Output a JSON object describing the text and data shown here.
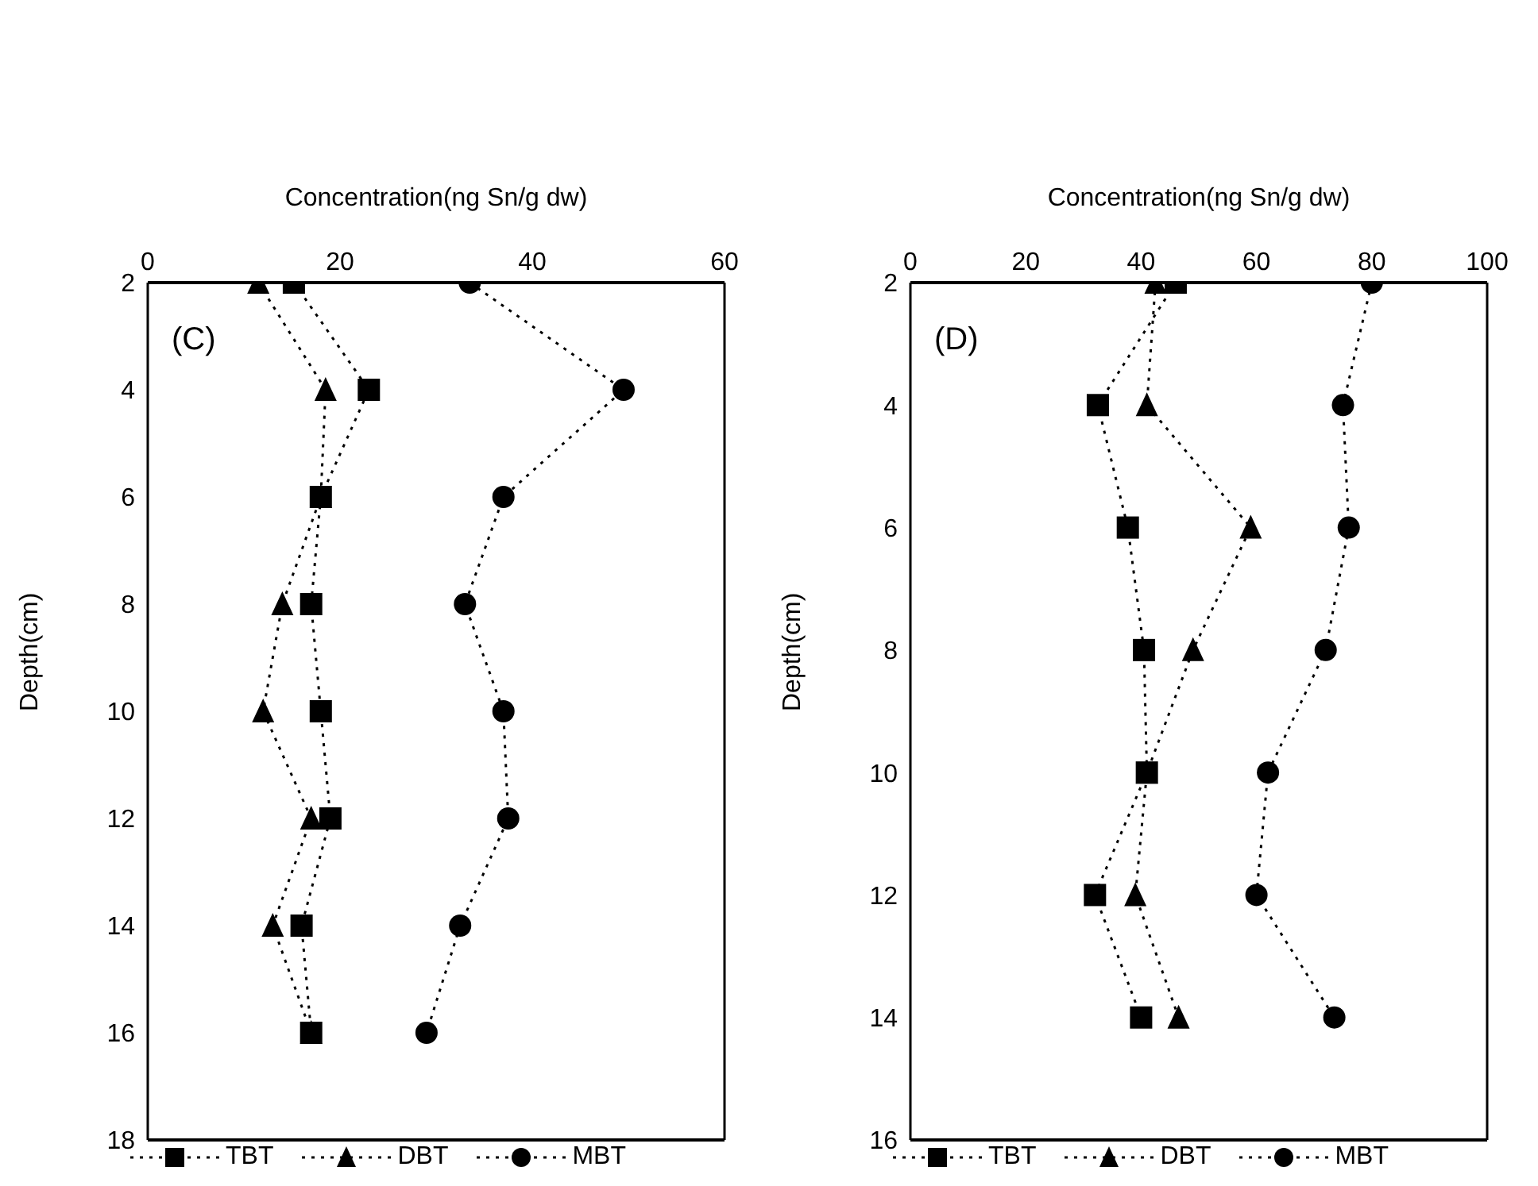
{
  "chart_data": [
    {
      "type": "line",
      "orientation": "horizontal",
      "xlabel": "Concentration(ng Sn/g dw)",
      "ylabel": "Depth(cm)",
      "annotations": [
        "(C)"
      ],
      "x": [
        2,
        4,
        6,
        8,
        10,
        12,
        14,
        16
      ],
      "xlim": [
        0,
        60
      ],
      "xticks": [
        0,
        20,
        40,
        60
      ],
      "ylim": [
        18,
        2
      ],
      "yticks": [
        2,
        4,
        6,
        8,
        10,
        12,
        14,
        16,
        18
      ],
      "line_style": "dotted",
      "legend": "bottom",
      "series": [
        {
          "name": "TBT",
          "color": "#000000",
          "marker": "square",
          "values": [
            15.2,
            23,
            18,
            17,
            18,
            19,
            16,
            17
          ]
        },
        {
          "name": "DBT",
          "color": "#000000",
          "marker": "triangle",
          "values": [
            11.5,
            18.5,
            18,
            14,
            12,
            17,
            13,
            17
          ]
        },
        {
          "name": "MBT",
          "color": "#000000",
          "marker": "circle",
          "values": [
            33.5,
            49.5,
            37,
            33,
            37,
            37.5,
            32.5,
            29
          ]
        }
      ]
    },
    {
      "type": "line",
      "orientation": "horizontal",
      "xlabel": "Concentration(ng Sn/g dw)",
      "ylabel": "Depth(cm)",
      "annotations": [
        "(D)"
      ],
      "x": [
        2,
        4,
        6,
        8,
        10,
        12,
        14
      ],
      "xlim": [
        0,
        100
      ],
      "xticks": [
        0,
        20,
        40,
        60,
        80,
        100
      ],
      "ylim": [
        16,
        2
      ],
      "yticks": [
        2,
        4,
        6,
        8,
        10,
        12,
        14,
        16
      ],
      "line_style": "dotted",
      "legend": "bottom",
      "series": [
        {
          "name": "TBT",
          "color": "#000000",
          "marker": "square",
          "values": [
            46,
            32.5,
            37.7,
            40.5,
            41,
            32,
            40
          ]
        },
        {
          "name": "DBT",
          "color": "#000000",
          "marker": "triangle",
          "values": [
            42.5,
            41,
            59,
            49,
            41,
            39,
            46.5
          ]
        },
        {
          "name": "MBT",
          "color": "#000000",
          "marker": "circle",
          "values": [
            80,
            75,
            76,
            72,
            62,
            60,
            73.5
          ]
        }
      ]
    }
  ]
}
